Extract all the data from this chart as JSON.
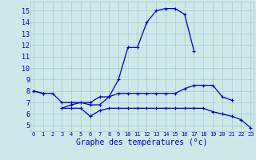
{
  "background_color": "#cce8e8",
  "grid_color": "#aacaca",
  "line_color": "#0000cc",
  "title": "Graphe des températures (°c)",
  "x_hours": [
    0,
    1,
    2,
    3,
    4,
    5,
    6,
    7,
    8,
    9,
    10,
    11,
    12,
    13,
    14,
    15,
    16,
    17,
    18,
    19,
    20,
    21,
    22,
    23
  ],
  "series1": [
    8.0,
    7.8,
    7.8,
    7.0,
    7.0,
    7.0,
    7.0,
    7.5,
    7.5,
    9.0,
    11.8,
    11.8,
    14.0,
    15.0,
    15.2,
    15.2,
    14.7,
    11.5,
    null,
    null,
    null,
    null,
    null,
    null
  ],
  "series2": [
    8.0,
    7.8,
    null,
    6.5,
    6.8,
    7.0,
    6.8,
    6.8,
    7.5,
    7.8,
    7.8,
    7.8,
    7.8,
    7.8,
    7.8,
    7.8,
    8.2,
    8.5,
    8.5,
    8.5,
    7.5,
    7.2,
    null,
    null
  ],
  "series3": [
    null,
    null,
    null,
    6.5,
    6.5,
    6.5,
    5.8,
    6.3,
    6.5,
    6.5,
    6.5,
    6.5,
    6.5,
    6.5,
    6.5,
    6.5,
    6.5,
    6.5,
    6.5,
    6.2,
    6.0,
    5.8,
    5.5,
    4.8
  ],
  "ylim": [
    4.5,
    15.8
  ],
  "yticks": [
    5,
    6,
    7,
    8,
    9,
    10,
    11,
    12,
    13,
    14,
    15
  ],
  "xlim": [
    -0.3,
    23.3
  ],
  "xticks": [
    0,
    1,
    2,
    3,
    4,
    5,
    6,
    7,
    8,
    9,
    10,
    11,
    12,
    13,
    14,
    15,
    16,
    17,
    18,
    19,
    20,
    21,
    22,
    23
  ]
}
